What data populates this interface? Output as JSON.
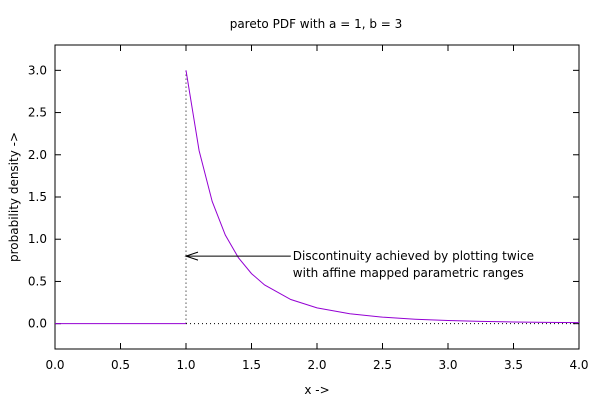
{
  "chart_data": {
    "type": "line",
    "title": "pareto PDF with a = 1, b = 3",
    "xlabel": "x ->",
    "ylabel": "probability density ->",
    "xlim": [
      0.0,
      4.0
    ],
    "ylim": [
      -0.3,
      3.3
    ],
    "x_ticks": [
      "0.0",
      "0.5",
      "1.0",
      "1.5",
      "2.0",
      "2.5",
      "3.0",
      "3.5",
      "4.0"
    ],
    "y_ticks": [
      "0.0",
      "0.5",
      "1.0",
      "1.5",
      "2.0",
      "2.5",
      "3.0"
    ],
    "x_tick_values": [
      0,
      0.5,
      1.0,
      1.5,
      2.0,
      2.5,
      3.0,
      3.5,
      4.0
    ],
    "y_tick_values": [
      0,
      0.5,
      1.0,
      1.5,
      2.0,
      2.5,
      3.0
    ],
    "curve_color": "#9400d3",
    "grid": false,
    "series": [
      {
        "x": [
          0.0,
          0.25,
          0.5,
          0.75,
          1.0
        ],
        "y": [
          0.0,
          0.0,
          0.0,
          0.0,
          0.0
        ]
      },
      {
        "x": [
          1.0,
          1.1,
          1.2,
          1.3,
          1.4,
          1.5,
          1.6,
          1.8,
          2.0,
          2.25,
          2.5,
          2.75,
          3.0,
          3.25,
          3.5,
          3.75,
          4.0
        ],
        "y": [
          3.0,
          2.049,
          1.447,
          1.05,
          0.781,
          0.593,
          0.458,
          0.286,
          0.1875,
          0.117,
          0.0768,
          0.0526,
          0.037,
          0.0269,
          0.02,
          0.0152,
          0.0117
        ]
      }
    ],
    "guides": {
      "vertical_x": 1.0,
      "vertical_y_range": [
        0.0,
        3.0
      ],
      "horizontal_y": 0.0,
      "horizontal_x_range": [
        1.0,
        4.0
      ]
    },
    "annotation": {
      "lines": [
        "Discontinuity achieved by plotting twice",
        "with affine mapped parametric ranges"
      ],
      "arrow_from": [
        1.8,
        0.8
      ],
      "arrow_to": [
        1.0,
        0.8
      ]
    }
  }
}
